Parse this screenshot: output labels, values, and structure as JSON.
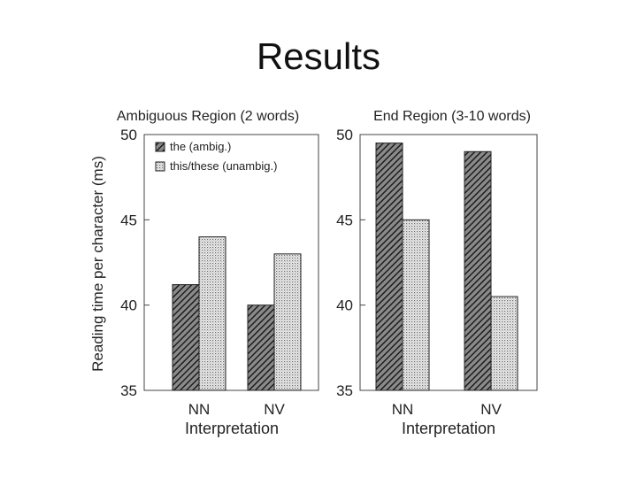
{
  "slide": {
    "title": "Results"
  },
  "chart_data": [
    {
      "type": "bar",
      "title": "Ambiguous Region (2 words)",
      "xlabel": "Interpretation",
      "ylabel": "Reading time per character (ms)",
      "categories": [
        "NN",
        "NV"
      ],
      "series": [
        {
          "name": "the (ambig.)",
          "values": [
            41.2,
            40.0
          ]
        },
        {
          "name": "this/these (unambig.)",
          "values": [
            44.0,
            43.0
          ]
        }
      ],
      "ylim": [
        35,
        50
      ],
      "yticks": [
        35,
        40,
        45,
        50
      ],
      "legend": "top-left",
      "grid": false
    },
    {
      "type": "bar",
      "title": "End Region (3-10 words)",
      "xlabel": "Interpretation",
      "ylabel": "",
      "categories": [
        "NN",
        "NV"
      ],
      "series": [
        {
          "name": "",
          "values": [
            49.5,
            49.0
          ]
        },
        {
          "name": "",
          "values": [
            45.0,
            40.5
          ]
        }
      ],
      "ylim": [
        35,
        50
      ],
      "yticks": [
        35,
        40,
        45,
        50
      ],
      "grid": false
    }
  ]
}
